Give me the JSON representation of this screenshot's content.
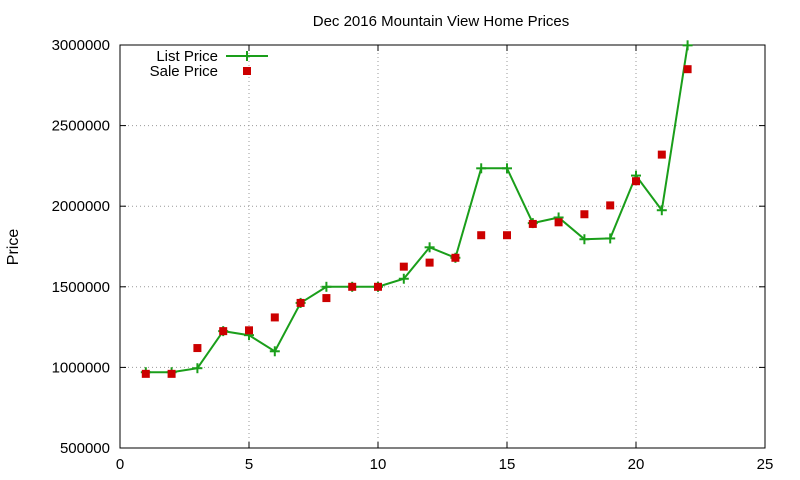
{
  "chart_data": {
    "type": "line",
    "title": "Dec 2016 Mountain View Home Prices",
    "xlabel": "",
    "ylabel": "Price",
    "xlim": [
      0,
      25
    ],
    "ylim": [
      500000,
      3000000
    ],
    "xticks": [
      "0",
      "5",
      "10",
      "15",
      "20",
      "25"
    ],
    "yticks": [
      "500000",
      "1000000",
      "1500000",
      "2000000",
      "2500000",
      "3000000"
    ],
    "grid": true,
    "legend_position": "top-left",
    "series": [
      {
        "name": "List Price",
        "style": "line-with-plus-markers",
        "color": "#1a9e1a",
        "points": [
          [
            1,
            970000
          ],
          [
            2,
            970000
          ],
          [
            3,
            995000
          ],
          [
            4,
            1225000
          ],
          [
            5,
            1200000
          ],
          [
            6,
            1100000
          ],
          [
            7,
            1400000
          ],
          [
            8,
            1500000
          ],
          [
            9,
            1500000
          ],
          [
            10,
            1500000
          ],
          [
            11,
            1550000
          ],
          [
            12,
            1745000
          ],
          [
            13,
            1680000
          ],
          [
            14,
            2235000
          ],
          [
            15,
            2235000
          ],
          [
            16,
            1895000
          ],
          [
            17,
            1930000
          ],
          [
            18,
            1795000
          ],
          [
            19,
            1800000
          ],
          [
            20,
            2190000
          ],
          [
            21,
            1975000
          ],
          [
            22,
            2998000
          ]
        ]
      },
      {
        "name": "Sale Price",
        "style": "square-markers",
        "color": "#cc0000",
        "points": [
          [
            1,
            960000
          ],
          [
            2,
            960000
          ],
          [
            3,
            1120000
          ],
          [
            4,
            1225000
          ],
          [
            5,
            1230000
          ],
          [
            6,
            1310000
          ],
          [
            7,
            1400000
          ],
          [
            8,
            1430000
          ],
          [
            9,
            1500000
          ],
          [
            10,
            1500000
          ],
          [
            11,
            1625000
          ],
          [
            12,
            1650000
          ],
          [
            13,
            1680000
          ],
          [
            14,
            1820000
          ],
          [
            15,
            1820000
          ],
          [
            16,
            1890000
          ],
          [
            17,
            1900000
          ],
          [
            18,
            1950000
          ],
          [
            19,
            2005000
          ],
          [
            20,
            2155000
          ],
          [
            21,
            2320000
          ],
          [
            22,
            2850000
          ]
        ]
      }
    ]
  }
}
